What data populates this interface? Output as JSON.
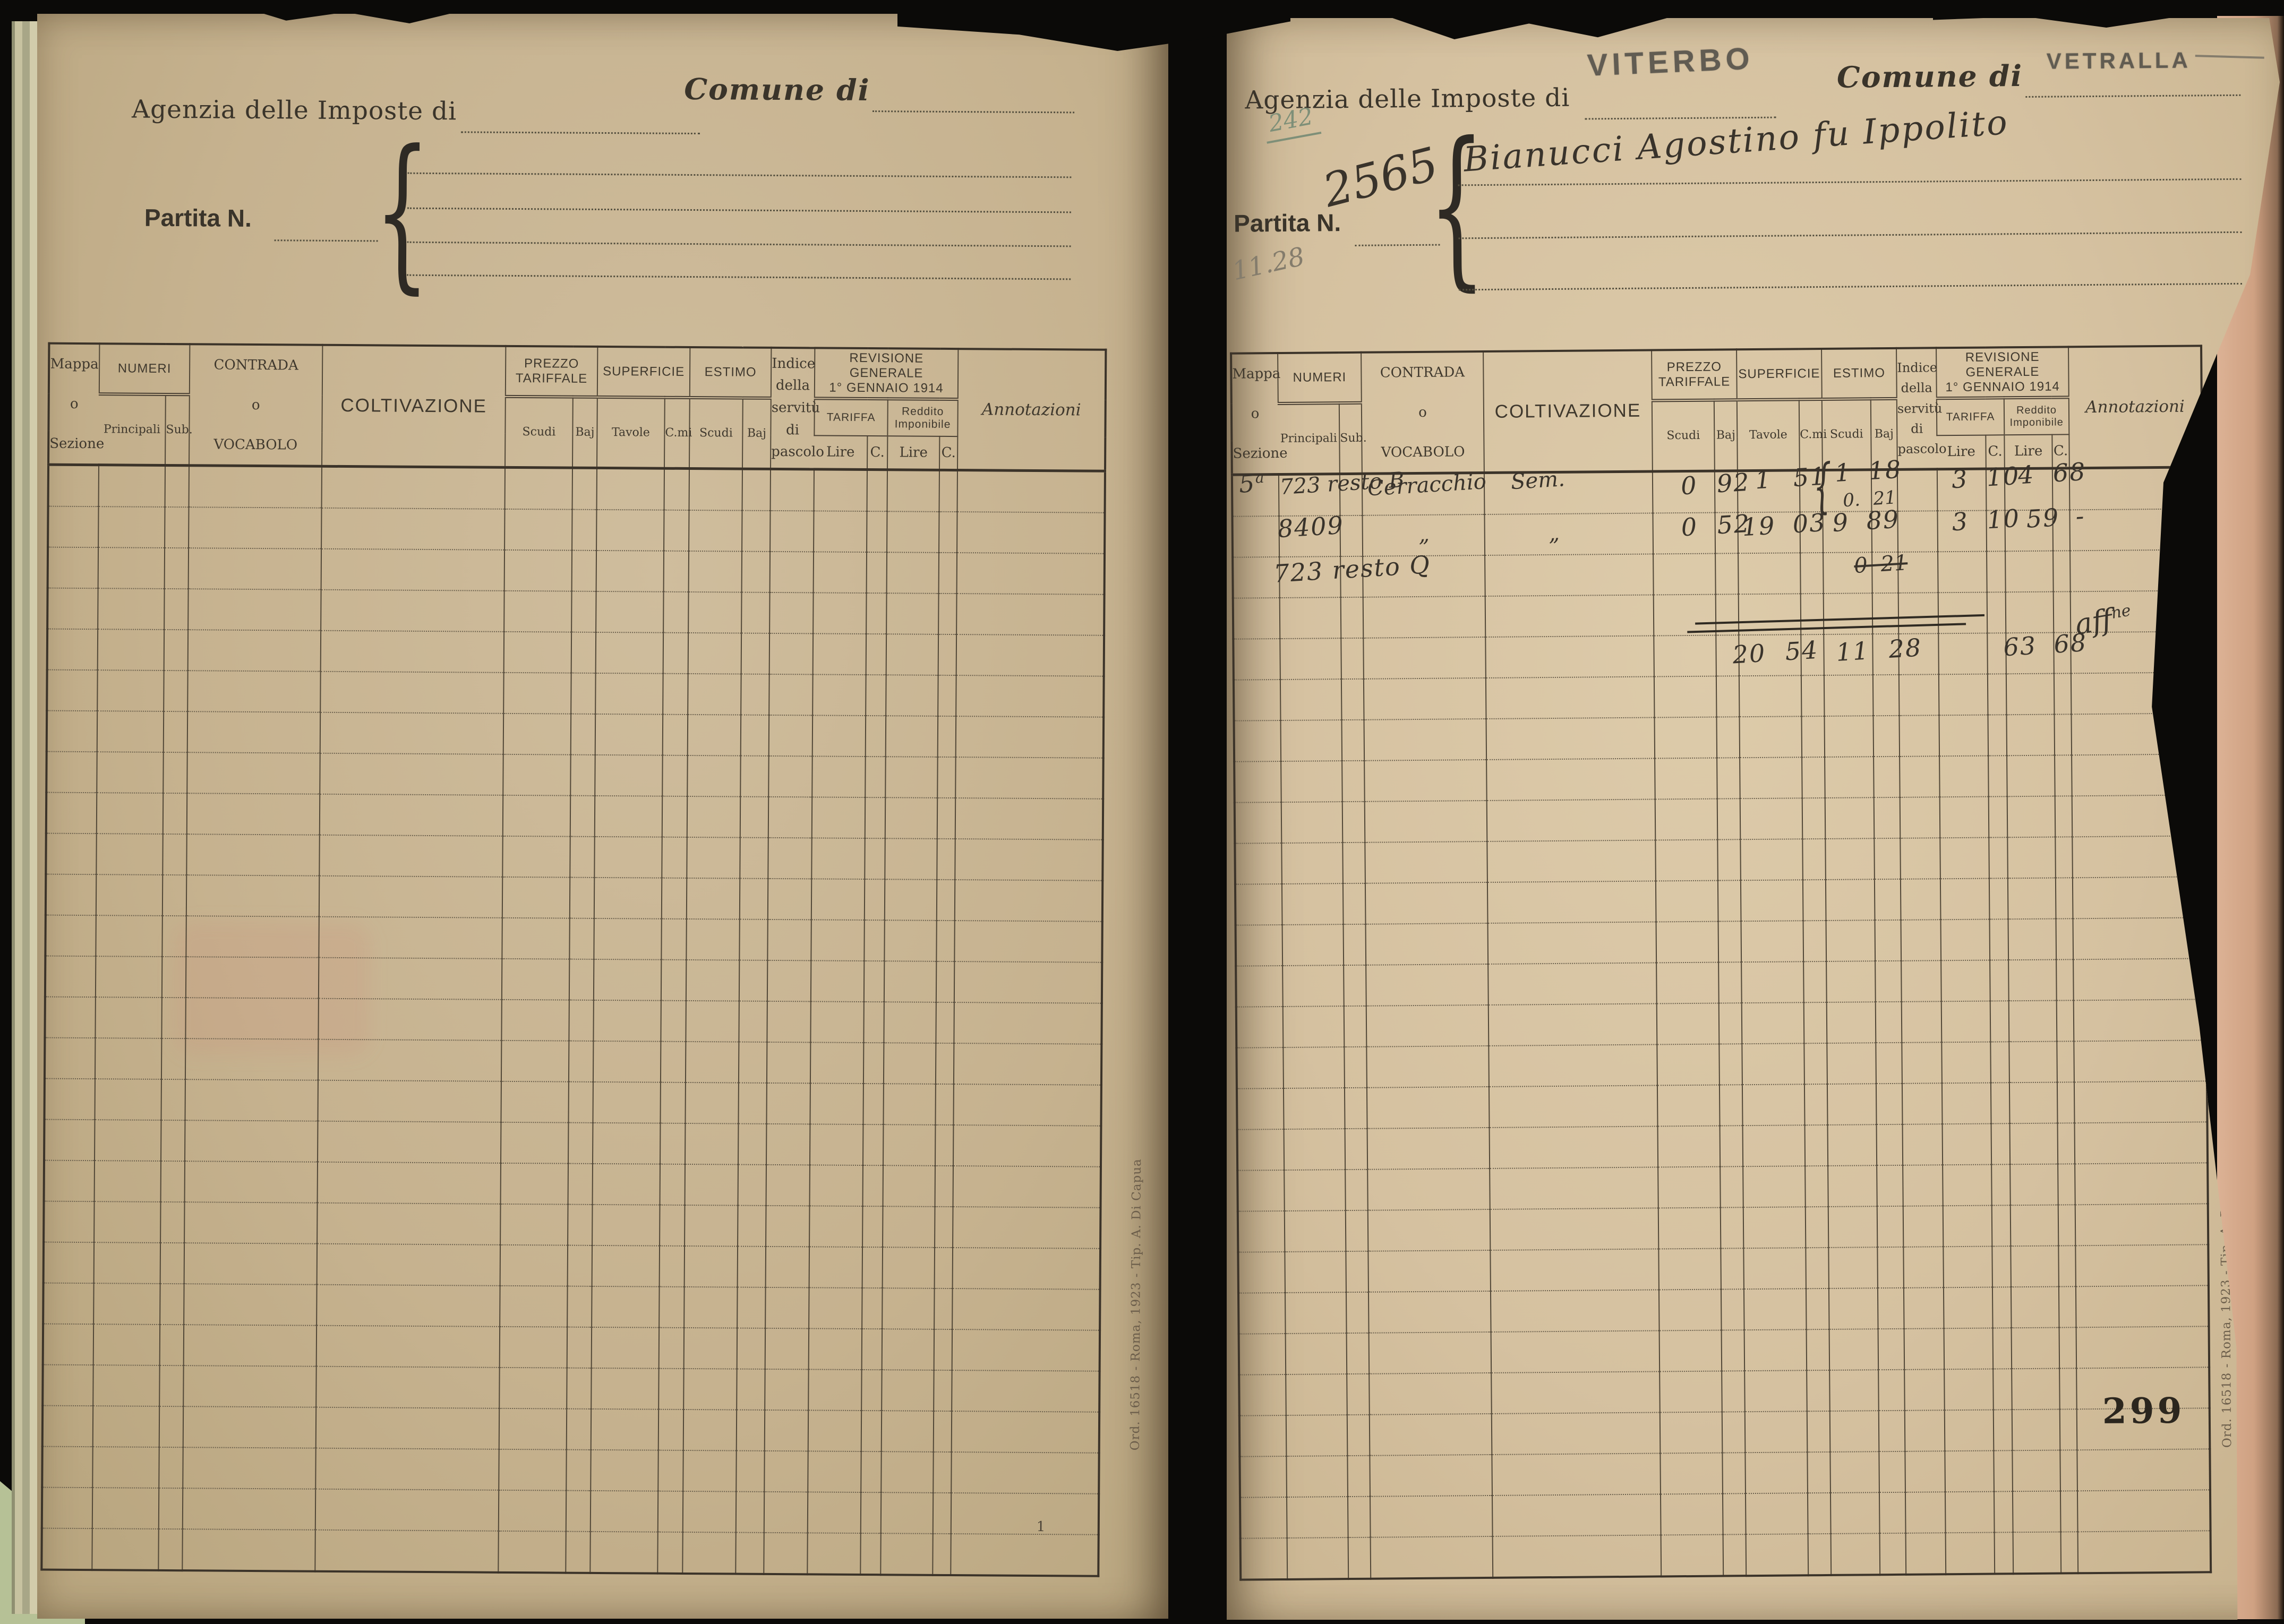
{
  "page_header": {
    "agenzia_label": "Agenzia delle Imposte di",
    "comune_label": "Comune di",
    "partita_label": "Partita N."
  },
  "left_page": {
    "sheet_mark": "1"
  },
  "right_page": {
    "agenzia_stamp": "VITERBO",
    "comune_stamp": "VETRALLA",
    "pencil_number": "242",
    "partita_number": "2565",
    "holder_name": "Bianucci Agostino fu Ippolito",
    "pencil_total": "11.28",
    "page_number": "299"
  },
  "printer_imprint": "Ord. 16518 - Roma, 1923 - Tip. A. Di Capua",
  "table_header": {
    "mappa": [
      "Mappa",
      "o",
      "Sezione"
    ],
    "numeri": "NUMERI",
    "principali": "Principali",
    "sub": "Sub.",
    "contrada": [
      "CONTRADA",
      "o",
      "VOCABOLO"
    ],
    "coltivazione": "COLTIVAZIONE",
    "prezzo": [
      "PREZZO",
      "TARIFFALE"
    ],
    "superficie": "SUPERFICIE",
    "estimo": "ESTIMO",
    "scudi": "Scudi",
    "baj": "Baj",
    "tavole": "Tavole",
    "cmi": "C.mi",
    "indice": [
      "Indice",
      "della",
      "servitù",
      "di",
      "pascolo"
    ],
    "revisione": [
      "REVISIONE GENERALE",
      "1° GENNAIO 1914"
    ],
    "tariffa": "TARIFFA",
    "reddito": "Reddito Imponibile",
    "lire": "Lire",
    "c": "C.",
    "annotazioni": "Annotazioni"
  },
  "entries": [
    {
      "mappa": "5",
      "mappa_sup": "a",
      "numero": "723 resto B",
      "contrada": "Cerracchio",
      "coltivazione": "Sem.",
      "prezzo": "0 92",
      "superficie": "1 51",
      "estimo_brace": "{",
      "estimo_top": "1 18",
      "estimo_sub": "0. 21",
      "tariffa": "3 10",
      "reddito": "4 68"
    },
    {
      "numero": "8409",
      "contrada": "„",
      "coltivazione": "„",
      "prezzo": "0 52",
      "superficie": "19 03",
      "estimo": "9 89",
      "tariffa": "3 10",
      "reddito": "59 -"
    },
    {
      "numero": "723 resto Q",
      "estimo_struck": "0 21"
    },
    {
      "annotation_main": "aff",
      "annotation_sup": "ne"
    }
  ],
  "totals": {
    "superficie": "20 54",
    "estimo": "11 28",
    "reddito": "63 68"
  },
  "colors": {
    "paper_left": "#c6b392",
    "paper_right": "#d9c6a5",
    "ink": "#39332b",
    "pencil_green": "#7e8f78",
    "pencil_grey": "#847c6c",
    "rule": "#514737",
    "background": "#0b0a08",
    "under_page_pink": "#dcb295"
  }
}
